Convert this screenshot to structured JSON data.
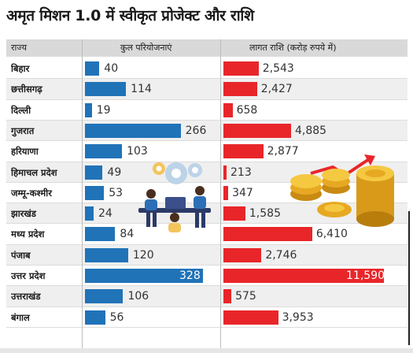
{
  "title": "अमृत मिशन 1.0 में स्वीकृत प्रोजेक्ट और राशि",
  "headers": {
    "state": "राज्य",
    "projects": "कुल परियोजनाएं",
    "amount": "लागत राशि (करोड़ रुपये में)"
  },
  "colors": {
    "projects_bar": "#2173b8",
    "amount_bar": "#e8262a",
    "header_bg": "#d9d9d9"
  },
  "icons": [
    "team-working-illustration",
    "gold-coins-illustration"
  ],
  "chart_data": {
    "type": "bar",
    "orientation": "horizontal",
    "categories": [
      "बिहार",
      "छत्तीसगढ़",
      "दिल्ली",
      "गुजरात",
      "हरियाणा",
      "हिमाचल प्रदेश",
      "जम्मू-कश्मीर",
      "झारखंड",
      "मध्य प्रदेश",
      "पंजाब",
      "उत्तर प्रदेश",
      "उत्तराखंड",
      "बंगाल"
    ],
    "series": [
      {
        "name": "कुल परियोजनाएं",
        "values": [
          40,
          114,
          19,
          266,
          103,
          49,
          53,
          24,
          84,
          120,
          328,
          106,
          56
        ],
        "labels": [
          "40",
          "114",
          "19",
          "266",
          "103",
          "49",
          "53",
          "24",
          "84",
          "120",
          "328",
          "106",
          "56"
        ]
      },
      {
        "name": "लागत राशि (करोड़ रुपये में)",
        "values": [
          2543,
          2427,
          658,
          4885,
          2877,
          213,
          347,
          1585,
          6410,
          2746,
          11590,
          575,
          3953
        ],
        "labels": [
          "2,543",
          "2,427",
          "658",
          "4,885",
          "2,877",
          "213",
          "347",
          "1,585",
          "6,410",
          "2,746",
          "11,590",
          "575",
          "3,953"
        ]
      }
    ]
  }
}
